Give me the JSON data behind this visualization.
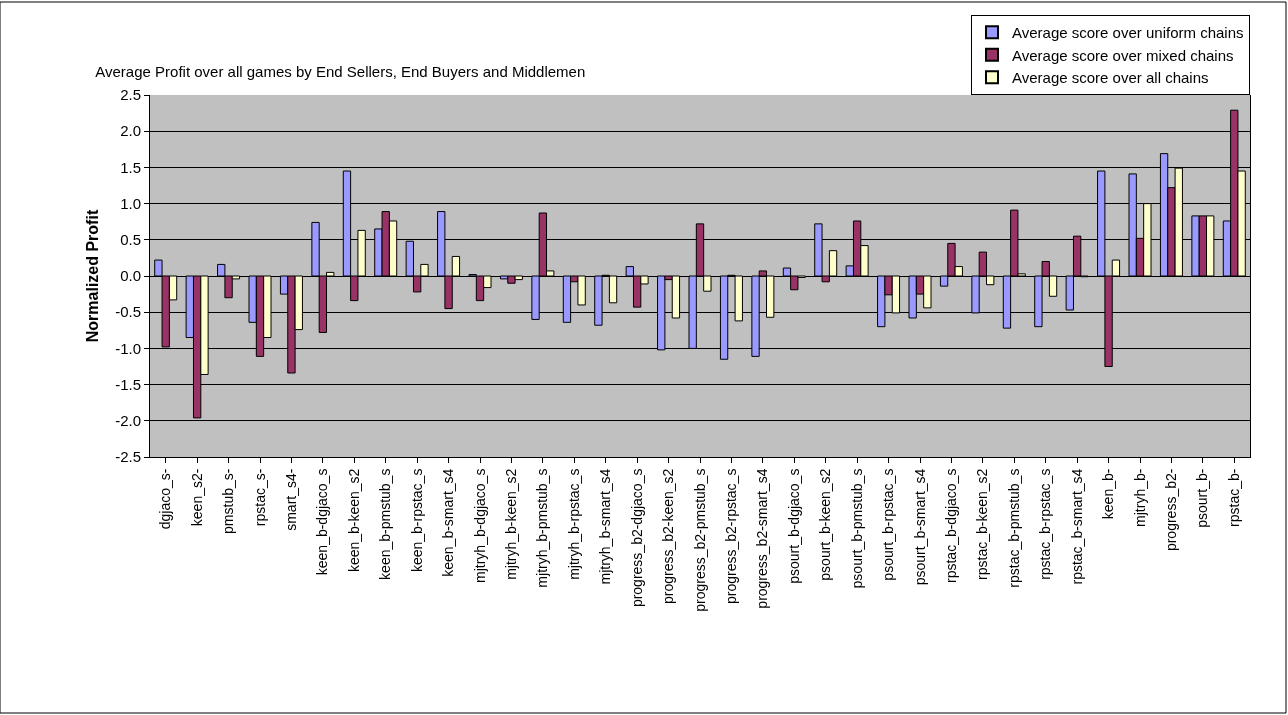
{
  "chart_data": {
    "type": "bar",
    "title": "Average Profit over all games by End Sellers, End Buyers and Middlemen",
    "ylabel": "Normalized Profit",
    "categories": [
      "dgjaco_s-",
      "keen_s2-",
      "pmstub_s-",
      "rpstac_s-",
      "smart_s4-",
      "keen_b-dgjaco_s",
      "keen_b-keen_s2",
      "keen_b-pmstub_s",
      "keen_b-rpstac_s",
      "keen_b-smart_s4",
      "mjtryh_b-dgjaco_s",
      "mjtryh_b-keen_s2",
      "mjtryh_b-pmstub_s",
      "mjtryh_b-rpstac_s",
      "mjtryh_b-smart_s4",
      "progress_b2-dgjaco_s",
      "progress_b2-keen_s2",
      "progress_b2-pmstub_s",
      "progress_b2-rpstac_s",
      "progress_b2-smart_s4",
      "psourt_b-dgjaco_s",
      "psourt_b-keen_s2",
      "psourt_b-pmstub_s",
      "psourt_b-rpstac_s",
      "psourt_b-smart_s4",
      "rpstac_b-dgjaco_s",
      "rpstac_b-keen_s2",
      "rpstac_b-pmstub_s",
      "rpstac_b-rpstac_s",
      "rpstac_b-smart_s4",
      "keen_b-",
      "mjtryh_b-",
      "progress_b2-",
      "psourt_b-",
      "rpstac_b-"
    ],
    "series": [
      {
        "name": "Average score over uniform chains",
        "color": "#9999ff",
        "values": [
          0.22,
          -0.85,
          0.16,
          -0.64,
          -0.25,
          0.74,
          1.45,
          0.65,
          0.48,
          0.89,
          0.02,
          -0.04,
          -0.6,
          -0.64,
          -0.68,
          0.13,
          -1.02,
          -1.0,
          -1.15,
          -1.11,
          0.11,
          0.72,
          0.14,
          -0.7,
          -0.58,
          -0.14,
          -0.51,
          -0.72,
          -0.7,
          -0.47,
          1.45,
          1.41,
          1.69,
          0.83,
          0.76
        ]
      },
      {
        "name": "Average score over mixed chains",
        "color": "#993366",
        "values": [
          -0.98,
          -1.96,
          -0.3,
          -1.11,
          -1.34,
          -0.78,
          -0.34,
          0.89,
          -0.22,
          -0.45,
          -0.34,
          -0.1,
          0.87,
          -0.08,
          0.01,
          -0.43,
          -0.05,
          0.72,
          0.01,
          0.07,
          -0.19,
          -0.08,
          0.76,
          -0.26,
          -0.25,
          0.45,
          0.33,
          0.91,
          0.2,
          0.55,
          -1.25,
          0.52,
          1.22,
          0.83,
          2.29
        ]
      },
      {
        "name": "Average score over all chains",
        "color": "#ffffcc",
        "values": [
          -0.33,
          -1.36,
          -0.04,
          -0.85,
          -0.74,
          0.05,
          0.63,
          0.76,
          0.16,
          0.27,
          -0.16,
          -0.05,
          0.07,
          -0.4,
          -0.37,
          -0.11,
          -0.58,
          -0.21,
          -0.62,
          -0.57,
          -0.02,
          0.35,
          0.42,
          -0.51,
          -0.44,
          0.13,
          -0.12,
          0.03,
          -0.28,
          -0.01,
          0.22,
          1.0,
          1.49,
          0.83,
          1.45
        ]
      }
    ],
    "ylim": [
      -2.5,
      2.5
    ],
    "yticks": [
      {
        "value": -2.5,
        "label": "-2.5"
      },
      {
        "value": -2,
        "label": "-2.0"
      },
      {
        "value": -1.5,
        "label": "-1.5"
      },
      {
        "value": -1,
        "label": "-1.0"
      },
      {
        "value": -0.5,
        "label": "-0.5"
      },
      {
        "value": 0,
        "label": "0.0"
      },
      {
        "value": 0.5,
        "label": "0.5"
      },
      {
        "value": 1,
        "label": "1.0"
      },
      {
        "value": 1.5,
        "label": "1.5"
      },
      {
        "value": 2,
        "label": "2.0"
      },
      {
        "value": 2.5,
        "label": "2.5"
      }
    ],
    "grid": "y",
    "legend": "top right"
  }
}
